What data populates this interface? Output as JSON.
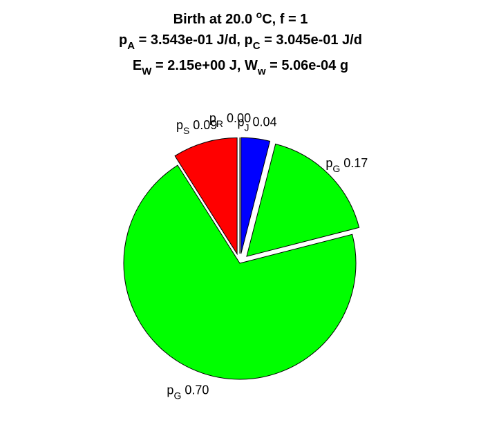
{
  "chart_data": {
    "type": "pie",
    "title": {
      "line1": {
        "text": "Birth at 20.0 ",
        "sup": "o",
        "text2": "C, f = 1"
      },
      "line2": {
        "a_main": "p",
        "a_sub": "A",
        "a_val": " = 3.543e-01 J/d, ",
        "c_main": "p",
        "c_sub": "C",
        "c_val": " = 3.045e-01 J/d"
      },
      "line3": {
        "e_main": "E",
        "e_sub": "W",
        "e_val": " = 2.15e+00 J, ",
        "w_main": "W",
        "w_sub": "w",
        "w_val": " = 5.06e-04 g"
      }
    },
    "slices": [
      {
        "name": "p",
        "sub": "J",
        "value": 0.04,
        "value_label": "0.04",
        "color": "#0000ff",
        "exploded": true
      },
      {
        "name": "p",
        "sub": "G",
        "value": 0.17,
        "value_label": "0.17",
        "color": "#00ff00",
        "exploded": true
      },
      {
        "name": "p",
        "sub": "G",
        "value": 0.7,
        "value_label": "0.70",
        "color": "#00ff00",
        "exploded": false
      },
      {
        "name": "p",
        "sub": "S",
        "value": 0.09,
        "value_label": "0.09",
        "color": "#ff0000",
        "exploded": true
      },
      {
        "name": "p",
        "sub": "R",
        "value": 0.0,
        "value_label": "0.00",
        "color": "#ffffff",
        "exploded": true
      }
    ]
  }
}
